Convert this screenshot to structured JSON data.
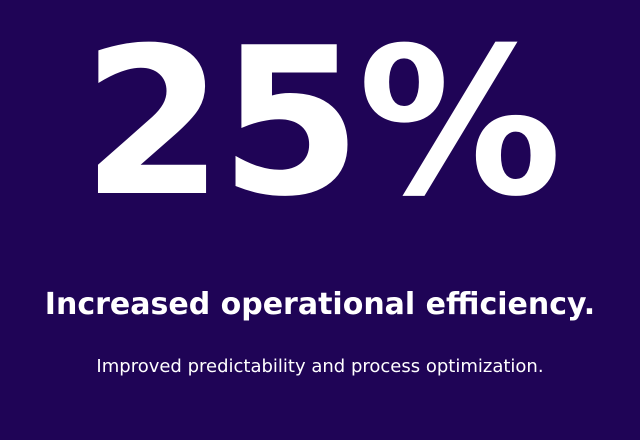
{
  "stat": {
    "value": "25%",
    "headline": "Increased operational efficiency.",
    "description": "Improved predictability and process optimization."
  },
  "colors": {
    "background": "#1f0456",
    "text": "#ffffff"
  }
}
